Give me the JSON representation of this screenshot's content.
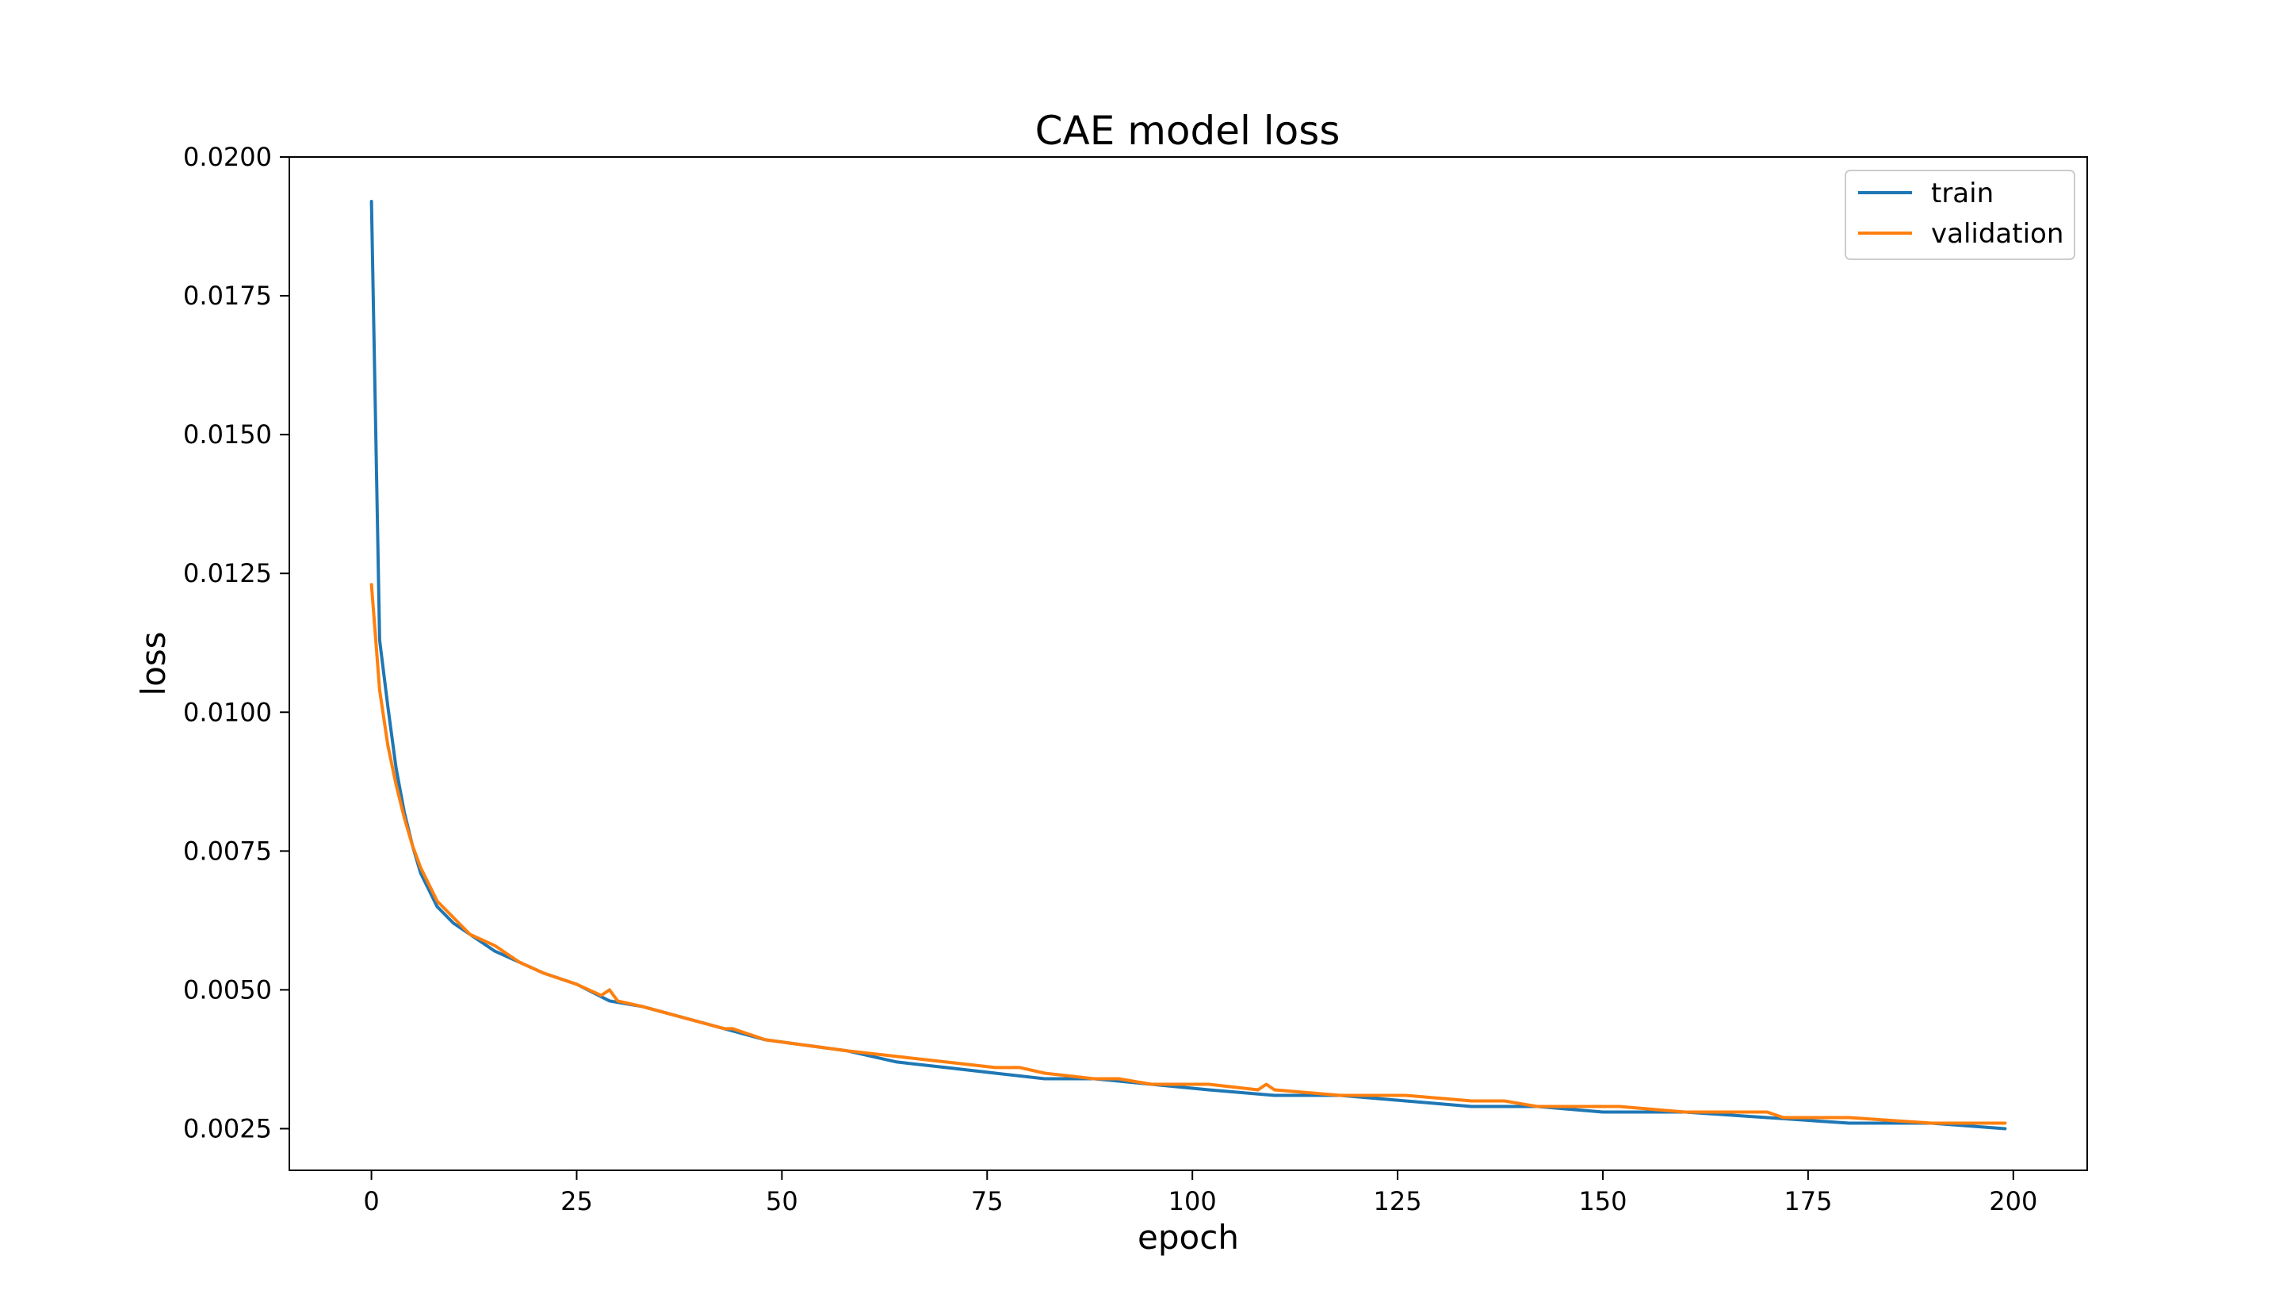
{
  "chart_data": {
    "type": "line",
    "title": "CAE model loss",
    "xlabel": "epoch",
    "ylabel": "loss",
    "xlim": [
      -10,
      209
    ],
    "ylim": [
      0.00175,
      0.02
    ],
    "xticks": [
      0,
      25,
      50,
      75,
      100,
      125,
      150,
      175,
      200
    ],
    "yticks": [
      0.0025,
      0.005,
      0.0075,
      0.01,
      0.0125,
      0.015,
      0.0175,
      0.02
    ],
    "ytick_labels": [
      "0.0025",
      "0.0050",
      "0.0075",
      "0.0100",
      "0.0125",
      "0.0150",
      "0.0175",
      "0.0200"
    ],
    "grid": false,
    "legend": {
      "position": "top-right"
    },
    "series": [
      {
        "name": "train",
        "color": "#1f77b4",
        "x": [
          0,
          1,
          2,
          3,
          4,
          5,
          6,
          7,
          8,
          10,
          12,
          15,
          18,
          21,
          25,
          29,
          33,
          38,
          43,
          48,
          53,
          58,
          64,
          70,
          76,
          82,
          88,
          95,
          102,
          110,
          118,
          126,
          134,
          142,
          150,
          160,
          170,
          180,
          190,
          199
        ],
        "values": [
          0.0192,
          0.0113,
          0.0101,
          0.009,
          0.0082,
          0.0076,
          0.0071,
          0.0068,
          0.0065,
          0.0062,
          0.006,
          0.0057,
          0.0055,
          0.0053,
          0.0051,
          0.0048,
          0.0047,
          0.0045,
          0.0043,
          0.0041,
          0.004,
          0.0039,
          0.0037,
          0.0036,
          0.0035,
          0.0034,
          0.0034,
          0.0033,
          0.0032,
          0.0031,
          0.0031,
          0.003,
          0.0029,
          0.0029,
          0.0028,
          0.0028,
          0.0027,
          0.0026,
          0.0026,
          0.0025
        ]
      },
      {
        "name": "validation",
        "color": "#ff7f0e",
        "x": [
          0,
          1,
          2,
          3,
          4,
          5,
          6,
          7,
          8,
          10,
          12,
          15,
          18,
          21,
          25,
          28,
          29,
          30,
          33,
          38,
          43,
          44,
          48,
          53,
          58,
          64,
          70,
          76,
          79,
          82,
          88,
          91,
          95,
          102,
          108,
          109,
          110,
          118,
          126,
          134,
          138,
          142,
          150,
          152,
          160,
          170,
          172,
          180,
          190,
          199
        ],
        "values": [
          0.0123,
          0.0104,
          0.0094,
          0.0087,
          0.0081,
          0.0076,
          0.0072,
          0.0069,
          0.0066,
          0.0063,
          0.006,
          0.0058,
          0.0055,
          0.0053,
          0.0051,
          0.0049,
          0.005,
          0.0048,
          0.0047,
          0.0045,
          0.0043,
          0.0043,
          0.0041,
          0.004,
          0.0039,
          0.0038,
          0.0037,
          0.0036,
          0.0036,
          0.0035,
          0.0034,
          0.0034,
          0.0033,
          0.0033,
          0.0032,
          0.0033,
          0.0032,
          0.0031,
          0.0031,
          0.003,
          0.003,
          0.0029,
          0.0029,
          0.0029,
          0.0028,
          0.0028,
          0.0027,
          0.0027,
          0.0026,
          0.0026
        ]
      }
    ]
  }
}
